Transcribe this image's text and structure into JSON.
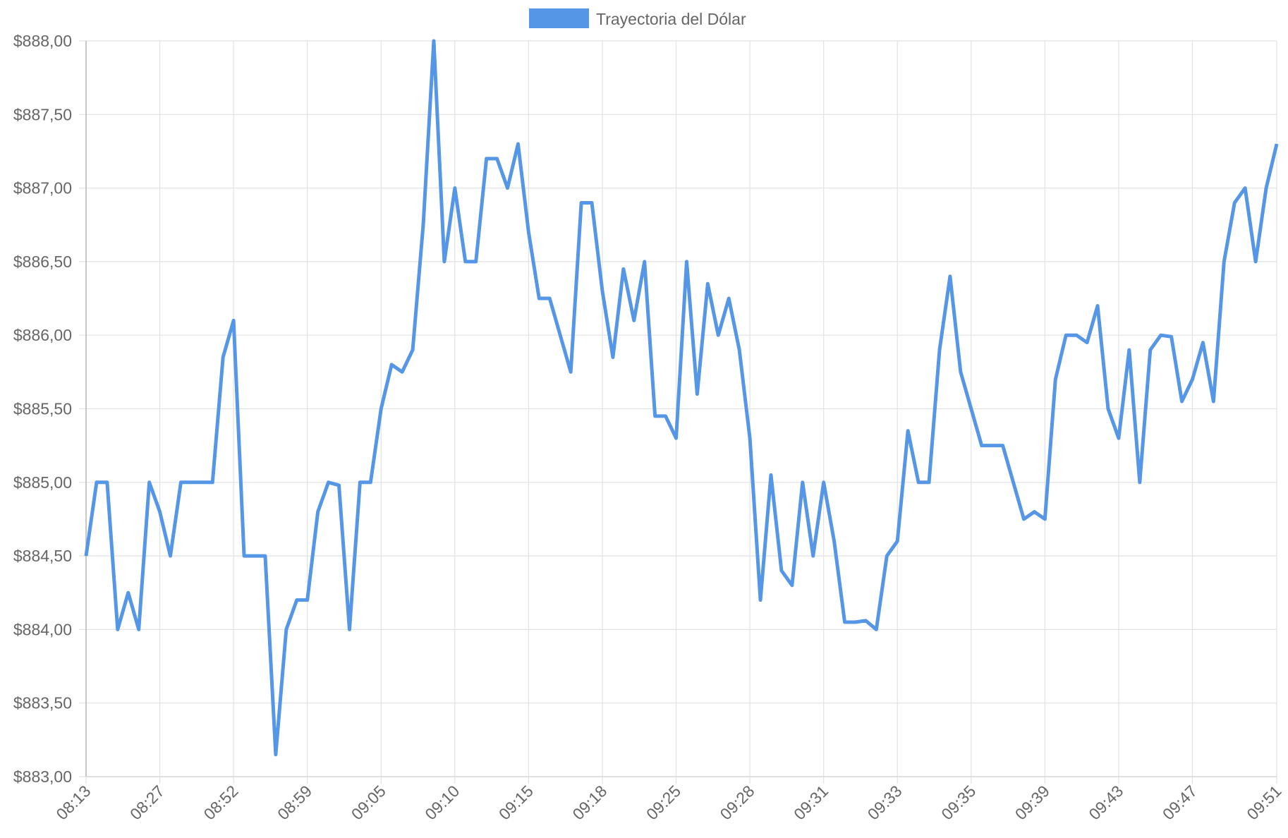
{
  "chart_data": {
    "type": "line",
    "categories": [
      "08:13",
      null,
      null,
      null,
      null,
      null,
      null,
      "08:27",
      null,
      null,
      null,
      null,
      null,
      null,
      "08:52",
      null,
      null,
      null,
      null,
      null,
      null,
      "08:59",
      null,
      null,
      null,
      null,
      null,
      null,
      "09:05",
      null,
      null,
      null,
      null,
      null,
      null,
      "09:10",
      null,
      null,
      null,
      null,
      null,
      null,
      "09:15",
      null,
      null,
      null,
      null,
      null,
      null,
      "09:18",
      null,
      null,
      null,
      null,
      null,
      null,
      "09:25",
      null,
      null,
      null,
      null,
      null,
      null,
      "09:28",
      null,
      null,
      null,
      null,
      null,
      null,
      "09:31",
      null,
      null,
      null,
      null,
      null,
      null,
      "09:33",
      null,
      null,
      null,
      null,
      null,
      null,
      "09:35",
      null,
      null,
      null,
      null,
      null,
      null,
      "09:39",
      null,
      null,
      null,
      null,
      null,
      null,
      "09:43",
      null,
      null,
      null,
      null,
      null,
      null,
      "09:47",
      null,
      null,
      null,
      null,
      null,
      null,
      null,
      "09:51"
    ],
    "series": [
      {
        "name": "Trayectoria del Dólar",
        "color": "#5596e6",
        "values": [
          884.5,
          885,
          885,
          884,
          884.25,
          884,
          885,
          884.8,
          884.5,
          885,
          885,
          885,
          885,
          885.85,
          886.1,
          884.5,
          884.5,
          884.5,
          883.15,
          884,
          884.2,
          884.2,
          884.8,
          885,
          884.98,
          884,
          885,
          885,
          885.5,
          885.8,
          885.75,
          885.9,
          886.75,
          888,
          886.5,
          887,
          886.5,
          886.5,
          887.2,
          887.2,
          887,
          887.3,
          886.7,
          886.25,
          886.25,
          886,
          885.75,
          886.9,
          886.9,
          886.3,
          885.85,
          886.45,
          886.1,
          886.5,
          885.45,
          885.45,
          885.3,
          886.5,
          885.6,
          886.35,
          886,
          886.25,
          885.9,
          885.3,
          884.2,
          885.05,
          884.4,
          884.3,
          885,
          884.5,
          885,
          884.6,
          884.05,
          884.05,
          884.06,
          884,
          884.5,
          884.6,
          885.35,
          885,
          885,
          885.9,
          886.4,
          885.75,
          885.5,
          885.25,
          885.25,
          885.25,
          885,
          884.75,
          884.8,
          884.75,
          885.7,
          886,
          886,
          885.95,
          886.2,
          885.5,
          885.3,
          885.9,
          885,
          885.9,
          886,
          885.99,
          885.55,
          885.7,
          885.95,
          885.55,
          886.5,
          886.9,
          887,
          886.5,
          887,
          887.3
        ]
      }
    ],
    "ylim": [
      883,
      888
    ],
    "yticks": [
      {
        "value": 883,
        "label": "$883,00"
      },
      {
        "value": 883.5,
        "label": "$883,50"
      },
      {
        "value": 884,
        "label": "$884,00"
      },
      {
        "value": 884.5,
        "label": "$884,50"
      },
      {
        "value": 885,
        "label": "$885,00"
      },
      {
        "value": 885.5,
        "label": "$885,50"
      },
      {
        "value": 886,
        "label": "$886,00"
      },
      {
        "value": 886.5,
        "label": "$886,50"
      },
      {
        "value": 887,
        "label": "$887,00"
      },
      {
        "value": 887.5,
        "label": "$887,50"
      },
      {
        "value": 888,
        "label": "$888,00"
      }
    ],
    "grid": true,
    "legend": "top"
  }
}
